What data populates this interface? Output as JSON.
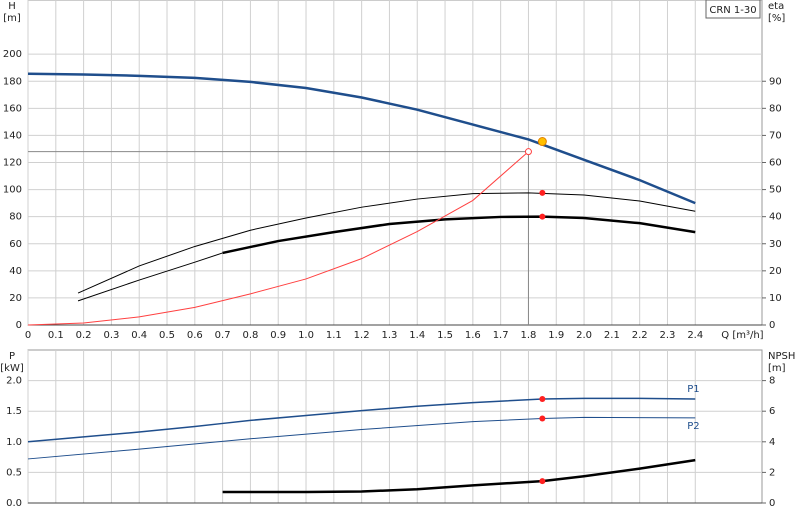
{
  "chart_data": [
    {
      "type": "line",
      "title": "CRN 1-30",
      "xlabel": "Q [m³/h]",
      "ylabel": "H",
      "yunit": "[m]",
      "y2label": "eta",
      "y2unit": "[%]",
      "xlim": [
        0,
        2.64
      ],
      "xticks": [
        0,
        0.1,
        0.2,
        0.3,
        0.4,
        0.5,
        0.6,
        0.7,
        0.8,
        0.9,
        {
          "value": 1,
          "label": "1.0"
        },
        1.1,
        1.2,
        1.3,
        1.4,
        1.5,
        1.6,
        1.7,
        1.8,
        1.9,
        {
          "value": 2,
          "label": "2.0"
        },
        2.1,
        2.2,
        2.3,
        2.4
      ],
      "ylim": [
        0,
        240
      ],
      "yticks": [
        0,
        20,
        40,
        60,
        80,
        100,
        120,
        140,
        160,
        180,
        200
      ],
      "y2lim": [
        0,
        120
      ],
      "y2ticks": [
        0,
        10,
        20,
        30,
        40,
        50,
        60,
        70,
        80,
        90
      ],
      "grid": true,
      "show_xtick_labels": true,
      "guide": {
        "x": 1.8,
        "y": 128
      },
      "series": [
        {
          "style": "line",
          "color": "#1f4e8c",
          "width": 2.5,
          "axis": "y",
          "x": [
            0,
            0.2,
            0.4,
            0.6,
            0.7,
            0.8,
            1.0,
            1.2,
            1.4,
            1.6,
            1.8,
            2.0,
            2.2,
            2.4
          ],
          "values": [
            185.5,
            185,
            184,
            182.5,
            181,
            179.5,
            175,
            168,
            159,
            148,
            137,
            122,
            107,
            90
          ]
        },
        {
          "style": "line",
          "color": "#000000",
          "width": 1,
          "axis": "y2",
          "x": [
            0.18,
            0.4,
            0.6,
            0.8,
            1.0,
            1.2,
            1.4,
            1.6,
            1.8,
            2.0,
            2.2,
            2.4
          ],
          "values": [
            11.8,
            21.8,
            29,
            35,
            39.5,
            43.5,
            46.5,
            48.5,
            48.8,
            48,
            45.8,
            42
          ]
        },
        {
          "style": "line",
          "color": "#000000",
          "width": 1,
          "axis": "y2",
          "x": [
            0.18,
            0.4,
            0.6,
            0.7
          ],
          "values": [
            8.9,
            16.6,
            23.2,
            26.6
          ]
        },
        {
          "style": "line",
          "color": "#000000",
          "width": 2.5,
          "axis": "y2",
          "x": [
            0.7,
            0.9,
            1.1,
            1.3,
            1.5,
            1.7,
            1.85,
            2.0,
            2.2,
            2.4
          ],
          "values": [
            26.6,
            31,
            34.3,
            37.3,
            39,
            39.9,
            40,
            39.5,
            37.6,
            34.3
          ]
        },
        {
          "style": "line",
          "color": "#ff4040",
          "width": 1,
          "axis": "y",
          "x": [
            0,
            0.2,
            0.4,
            0.6,
            0.8,
            1.0,
            1.2,
            1.4,
            1.6,
            1.8
          ],
          "values": [
            0,
            1.5,
            6,
            13,
            23,
            34,
            49,
            69,
            92,
            128
          ]
        },
        {
          "style": "ring",
          "color": "#ff4040",
          "axis": "y",
          "x": [
            1.8
          ],
          "values": [
            128
          ]
        },
        {
          "style": "dot",
          "color": "#ff2020",
          "axis": "y2",
          "x": [
            1.85,
            1.85
          ],
          "values": [
            48.8,
            40
          ]
        },
        {
          "style": "dot",
          "color": "#ffc000",
          "axis": "y",
          "x": [
            1.85
          ],
          "values": [
            135.5
          ]
        }
      ]
    },
    {
      "type": "line",
      "ylabel": "P",
      "yunit": "[kW]",
      "y2label": "NPSH",
      "y2unit": "[m]",
      "xlim": [
        0,
        2.64
      ],
      "xticks": [
        0,
        0.1,
        0.2,
        0.3,
        0.4,
        0.5,
        0.6,
        0.7,
        0.8,
        0.9,
        1,
        1.1,
        1.2,
        1.3,
        1.4,
        1.5,
        1.6,
        1.7,
        1.8,
        1.9,
        2,
        2.1,
        2.2,
        2.3,
        2.4
      ],
      "ylim": [
        0,
        2.5
      ],
      "yticks": [
        {
          "value": 0,
          "label": "0.0"
        },
        0.5,
        {
          "value": 1,
          "label": "1.0"
        },
        1.5,
        {
          "value": 2,
          "label": "2.0"
        }
      ],
      "y2lim": [
        0,
        10
      ],
      "y2ticks": [
        0,
        2,
        4,
        6,
        8
      ],
      "grid": true,
      "show_xtick_labels": false,
      "series": [
        {
          "name": "P1",
          "label_pos": "above",
          "style": "line",
          "color": "#1f4e8c",
          "width": 1.5,
          "axis": "y",
          "x": [
            0,
            0.2,
            0.4,
            0.6,
            0.7,
            0.8,
            1.0,
            1.2,
            1.4,
            1.6,
            1.85,
            2.0,
            2.2,
            2.4
          ],
          "values": [
            1.0,
            1.08,
            1.16,
            1.25,
            1.3,
            1.35,
            1.43,
            1.51,
            1.58,
            1.64,
            1.7,
            1.71,
            1.71,
            1.7
          ]
        },
        {
          "name": "P2",
          "label_pos": "below",
          "style": "line",
          "color": "#1f4e8c",
          "width": 1,
          "axis": "y",
          "x": [
            0,
            0.4,
            0.8,
            1.2,
            1.6,
            1.85,
            2.0,
            2.4
          ],
          "values": [
            0.72,
            0.88,
            1.05,
            1.2,
            1.33,
            1.38,
            1.4,
            1.39
          ]
        },
        {
          "style": "line",
          "color": "#000000",
          "width": 2.5,
          "axis": "y2",
          "x": [
            0.7,
            1.0,
            1.2,
            1.4,
            1.6,
            1.85,
            2.0,
            2.2,
            2.4
          ],
          "values": [
            0.72,
            0.72,
            0.75,
            0.9,
            1.15,
            1.43,
            1.75,
            2.25,
            2.8
          ]
        },
        {
          "style": "dot",
          "color": "#ff2020",
          "axis": "y",
          "x": [
            1.85,
            1.85
          ],
          "values": [
            1.7,
            1.38
          ]
        },
        {
          "style": "dot",
          "color": "#ff2020",
          "axis": "y2",
          "x": [
            1.85
          ],
          "values": [
            1.43
          ]
        }
      ]
    }
  ]
}
